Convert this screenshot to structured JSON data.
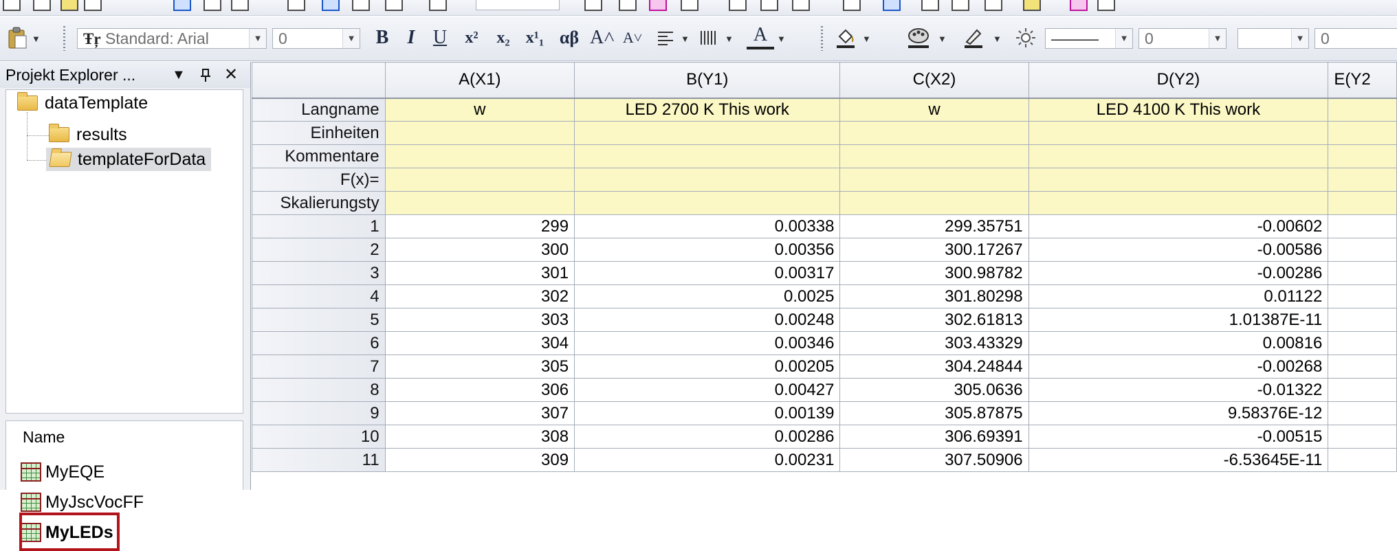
{
  "toolbar_top": {
    "zoom_value": ""
  },
  "format_toolbar": {
    "paste_icon": "clipboard-paste-icon",
    "font_combo": "Standard: Arial",
    "font_size": "0",
    "bold": "B",
    "italic": "I",
    "underline": "U",
    "superscript": "x²",
    "subscript": "x₂",
    "supersub": "x¹₁",
    "greek": "αβ",
    "grow_font": "A˄",
    "shrink_font": "A˅",
    "align_icon": "align-left-icon",
    "column_icon": "column-icon",
    "font_color": "A",
    "fill_color_icon": "fill-color-icon",
    "pattern_color_icon": "pattern-color-icon",
    "line_color_icon": "line-color-icon",
    "highlight_icon": "highlight-icon",
    "line_style": "———",
    "line_width": "0",
    "pattern_combo": "",
    "pattern_width": "0"
  },
  "explorer": {
    "title": "Projekt Explorer ...",
    "pin_icon": "pin-icon",
    "close_label": "✕",
    "menu_label": "▼",
    "tree": [
      {
        "label": "dataTemplate",
        "level": 0
      },
      {
        "label": "results",
        "level": 1
      },
      {
        "label": "templateForData",
        "level": 1,
        "selected": true
      }
    ],
    "list_header": "Name",
    "list_items": [
      {
        "label": "MyEQE",
        "bold": false
      },
      {
        "label": "MyJscVocFF",
        "bold": false
      },
      {
        "label": "MyLEDs",
        "bold": true,
        "highlighted": true
      }
    ]
  },
  "worksheet": {
    "columns": [
      "A(X1)",
      "B(Y1)",
      "C(X2)",
      "D(Y2)",
      "E(Y2"
    ],
    "meta_rows": [
      {
        "label": "Langname",
        "values": [
          "w",
          "LED 2700 K This work",
          "w",
          "LED 4100 K This work",
          ""
        ]
      },
      {
        "label": "Einheiten",
        "values": [
          "",
          "",
          "",
          "",
          ""
        ]
      },
      {
        "label": "Kommentare",
        "values": [
          "",
          "",
          "",
          "",
          ""
        ]
      },
      {
        "label": "F(x)=",
        "values": [
          "",
          "",
          "",
          "",
          ""
        ]
      },
      {
        "label": "Skalierungsty",
        "values": [
          "",
          "",
          "",
          "",
          ""
        ]
      }
    ],
    "data_rows": [
      {
        "label": "1",
        "values": [
          "299",
          "0.00338",
          "299.35751",
          "-0.00602",
          ""
        ]
      },
      {
        "label": "2",
        "values": [
          "300",
          "0.00356",
          "300.17267",
          "-0.00586",
          ""
        ]
      },
      {
        "label": "3",
        "values": [
          "301",
          "0.00317",
          "300.98782",
          "-0.00286",
          ""
        ]
      },
      {
        "label": "4",
        "values": [
          "302",
          "0.0025",
          "301.80298",
          "0.01122",
          ""
        ]
      },
      {
        "label": "5",
        "values": [
          "303",
          "0.00248",
          "302.61813",
          "1.01387E-11",
          ""
        ]
      },
      {
        "label": "6",
        "values": [
          "304",
          "0.00346",
          "303.43329",
          "0.00816",
          ""
        ]
      },
      {
        "label": "7",
        "values": [
          "305",
          "0.00205",
          "304.24844",
          "-0.00268",
          ""
        ]
      },
      {
        "label": "8",
        "values": [
          "306",
          "0.00427",
          "305.0636",
          "-0.01322",
          ""
        ]
      },
      {
        "label": "9",
        "values": [
          "307",
          "0.00139",
          "305.87875",
          "9.58376E-12",
          ""
        ]
      },
      {
        "label": "10",
        "values": [
          "308",
          "0.00286",
          "306.69391",
          "-0.00515",
          ""
        ]
      },
      {
        "label": "11",
        "values": [
          "309",
          "0.00231",
          "307.50906",
          "-6.53645E-11",
          ""
        ]
      }
    ]
  },
  "colors": {
    "meta_row_bg": "#fbf8c6",
    "selection_outline": "#b3131b"
  }
}
